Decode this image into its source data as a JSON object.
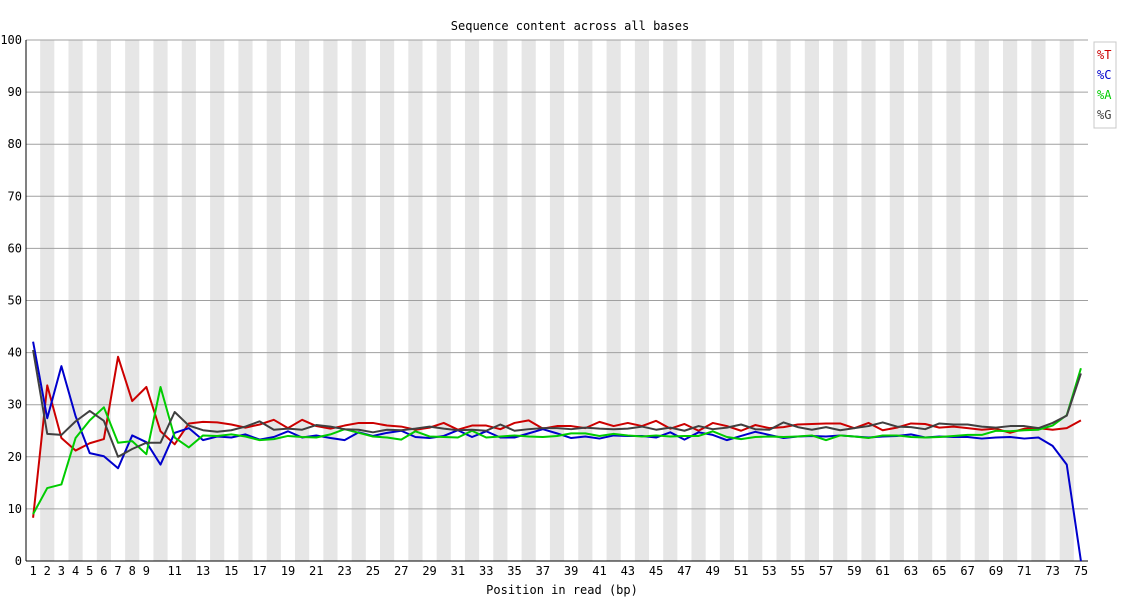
{
  "chart_data": {
    "type": "line",
    "title": "Sequence content across all bases",
    "xlabel": "Position in read (bp)",
    "ylabel": "",
    "ylim": [
      0,
      100
    ],
    "xlim": [
      1,
      75
    ],
    "grid": true,
    "alternating_column_shading": true,
    "legend_position": "top-right",
    "y_ticks": [
      "0",
      "10",
      "20",
      "30",
      "40",
      "50",
      "60",
      "70",
      "80",
      "90",
      "100"
    ],
    "x_tick_labels": [
      "1",
      "2",
      "3",
      "4",
      "5",
      "6",
      "7",
      "8",
      "9",
      "11",
      "13",
      "15",
      "17",
      "19",
      "21",
      "23",
      "25",
      "27",
      "29",
      "31",
      "33",
      "35",
      "37",
      "39",
      "41",
      "43",
      "45",
      "47",
      "49",
      "51",
      "53",
      "55",
      "57",
      "59",
      "61",
      "63",
      "65",
      "67",
      "69",
      "71",
      "73",
      "75"
    ],
    "x": [
      1,
      2,
      3,
      4,
      5,
      6,
      7,
      8,
      9,
      10,
      11,
      12,
      13,
      14,
      15,
      16,
      17,
      18,
      19,
      20,
      21,
      22,
      23,
      24,
      25,
      26,
      27,
      28,
      29,
      30,
      31,
      32,
      33,
      34,
      35,
      36,
      37,
      38,
      39,
      40,
      41,
      42,
      43,
      44,
      45,
      46,
      47,
      48,
      49,
      50,
      51,
      52,
      53,
      54,
      55,
      56,
      57,
      58,
      59,
      60,
      61,
      62,
      63,
      64,
      65,
      66,
      67,
      68,
      69,
      70,
      71,
      72,
      73,
      74,
      75
    ],
    "series": [
      {
        "name": "%T",
        "color": "#cc0000",
        "values": [
          8.3,
          33.7,
          23.6,
          21.2,
          22.6,
          23.4,
          39.2,
          30.7,
          33.4,
          24.9,
          22.4,
          26.4,
          26.7,
          26.6,
          26.2,
          25.6,
          26.2,
          27.1,
          25.5,
          27.1,
          25.9,
          25.4,
          26.0,
          26.5,
          26.5,
          26.0,
          25.8,
          25.2,
          25.6,
          26.5,
          25.2,
          26.0,
          26.0,
          25.3,
          26.5,
          27.0,
          25.4,
          25.9,
          25.9,
          25.5,
          26.7,
          25.9,
          26.5,
          25.9,
          26.9,
          25.4,
          26.3,
          25.0,
          26.5,
          25.9,
          25.0,
          26.1,
          25.5,
          25.7,
          26.2,
          26.3,
          26.4,
          26.4,
          25.5,
          26.5,
          25.1,
          25.6,
          26.4,
          26.3,
          25.6,
          25.8,
          25.5,
          25.2,
          25.4,
          24.6,
          25.4,
          25.5,
          25.2,
          25.5,
          27.0
        ]
      },
      {
        "name": "%C",
        "color": "#0000cc",
        "values": [
          42.1,
          27.4,
          37.4,
          27.8,
          20.7,
          20.1,
          17.8,
          24.1,
          22.8,
          18.5,
          24.6,
          25.5,
          23.2,
          23.9,
          23.7,
          24.3,
          23.3,
          23.8,
          24.9,
          23.7,
          24.1,
          23.6,
          23.2,
          24.7,
          24.0,
          24.6,
          25.0,
          23.8,
          23.6,
          24.0,
          25.1,
          23.8,
          24.9,
          23.7,
          23.7,
          24.5,
          25.3,
          24.5,
          23.6,
          23.9,
          23.5,
          24.1,
          24.0,
          24.0,
          23.7,
          24.7,
          23.3,
          24.7,
          24.2,
          23.2,
          24.0,
          24.8,
          24.2,
          23.6,
          23.9,
          24.0,
          23.9,
          24.1,
          23.9,
          23.7,
          23.9,
          24.0,
          24.3,
          23.7,
          23.9,
          23.8,
          23.8,
          23.5,
          23.7,
          23.8,
          23.5,
          23.7,
          22.1,
          18.5,
          0.0
        ]
      },
      {
        "name": "%A",
        "color": "#00cc00",
        "values": [
          9.0,
          14.0,
          14.7,
          23.6,
          27.0,
          29.5,
          22.7,
          23.0,
          20.5,
          33.4,
          23.7,
          21.8,
          24.1,
          24.0,
          24.3,
          23.9,
          23.2,
          23.4,
          24.0,
          23.8,
          23.7,
          24.3,
          25.3,
          24.6,
          23.9,
          23.7,
          23.3,
          24.9,
          23.9,
          23.8,
          23.7,
          25.0,
          23.7,
          23.9,
          24.1,
          23.9,
          23.8,
          24.0,
          24.5,
          24.5,
          24.0,
          24.4,
          24.1,
          23.9,
          24.1,
          23.9,
          24.0,
          24.0,
          24.9,
          23.8,
          23.4,
          23.8,
          23.9,
          23.8,
          23.9,
          24.1,
          23.2,
          24.1,
          23.9,
          23.6,
          24.1,
          24.1,
          23.8,
          23.7,
          23.8,
          24.0,
          24.2,
          24.2,
          25.0,
          24.9,
          25.1,
          25.2,
          26.0,
          28.0,
          37.0
        ]
      },
      {
        "name": "%G",
        "color": "#404040",
        "values": [
          40.5,
          24.4,
          24.2,
          26.8,
          28.8,
          26.9,
          20.0,
          21.5,
          22.7,
          22.7,
          28.6,
          26.0,
          25.1,
          24.8,
          25.1,
          25.8,
          26.8,
          25.2,
          25.4,
          25.2,
          26.1,
          25.8,
          25.3,
          25.2,
          24.7,
          25.2,
          25.1,
          25.4,
          25.8,
          25.4,
          25.1,
          25.2,
          25.0,
          26.2,
          25.0,
          25.3,
          25.5,
          25.5,
          25.3,
          25.6,
          25.4,
          25.3,
          25.4,
          25.8,
          25.2,
          25.6,
          25.0,
          25.9,
          25.3,
          25.6,
          26.2,
          25.3,
          25.2,
          26.6,
          25.7,
          25.2,
          25.7,
          25.1,
          25.5,
          25.9,
          26.6,
          25.8,
          25.7,
          25.3,
          26.4,
          26.2,
          26.2,
          25.8,
          25.6,
          25.9,
          25.9,
          25.5,
          26.5,
          27.9,
          36.0
        ]
      }
    ]
  }
}
